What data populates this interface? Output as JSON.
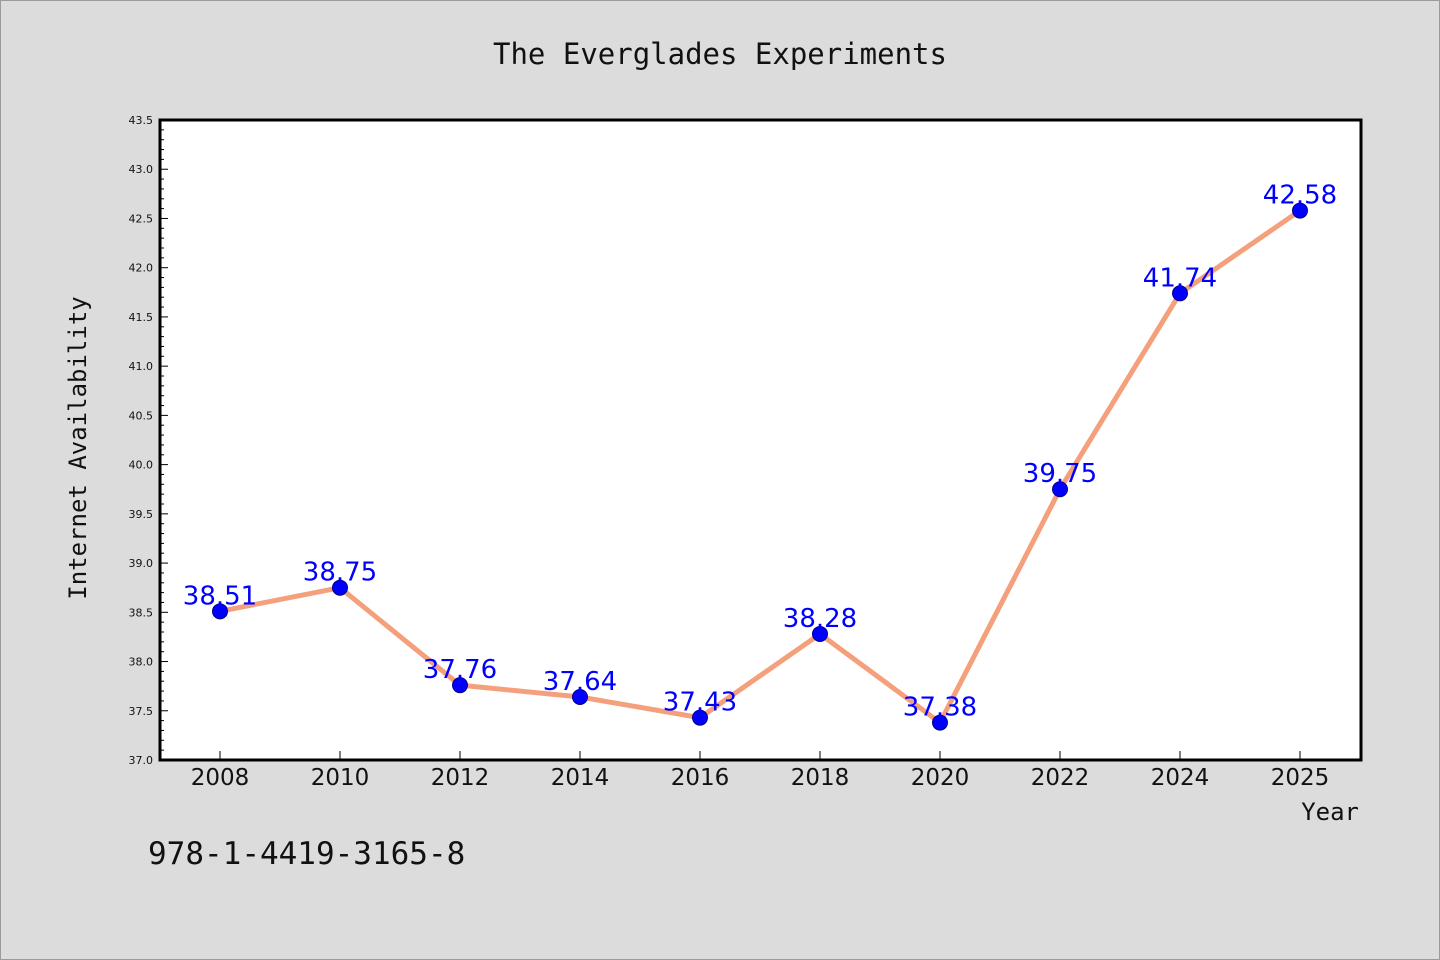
{
  "chart_data": {
    "type": "line",
    "title": "The Everglades Experiments",
    "xlabel": "Year",
    "ylabel": "Internet Availability",
    "categories": [
      "2008",
      "2010",
      "2012",
      "2014",
      "2016",
      "2018",
      "2020",
      "2022",
      "2024",
      "2025"
    ],
    "series": [
      {
        "values": [
          38.51,
          38.75,
          37.76,
          37.64,
          37.43,
          38.28,
          37.38,
          39.75,
          41.74,
          42.58
        ]
      }
    ],
    "data_labels": [
      "38.51",
      "38.75",
      "37.76",
      "37.64",
      "37.43",
      "38.28",
      "37.38",
      "39.75",
      "41.74",
      "42.58"
    ],
    "ylim": [
      37.0,
      43.5
    ],
    "yticks": [
      "37.0",
      "37.5",
      "38.0",
      "38.5",
      "39.0",
      "39.5",
      "40.0",
      "40.5",
      "41.0",
      "41.5",
      "42.0",
      "42.5",
      "43.0",
      "43.5"
    ],
    "grid": false,
    "legend": "none",
    "colors": {
      "line": "#f4a07c",
      "marker": "#0000ff",
      "label": "#0000ff",
      "plot_background": "#ffffff",
      "figure_background": "#dcdcdc"
    }
  },
  "annotation": {
    "isbn": "978-1-4419-3165-8"
  }
}
